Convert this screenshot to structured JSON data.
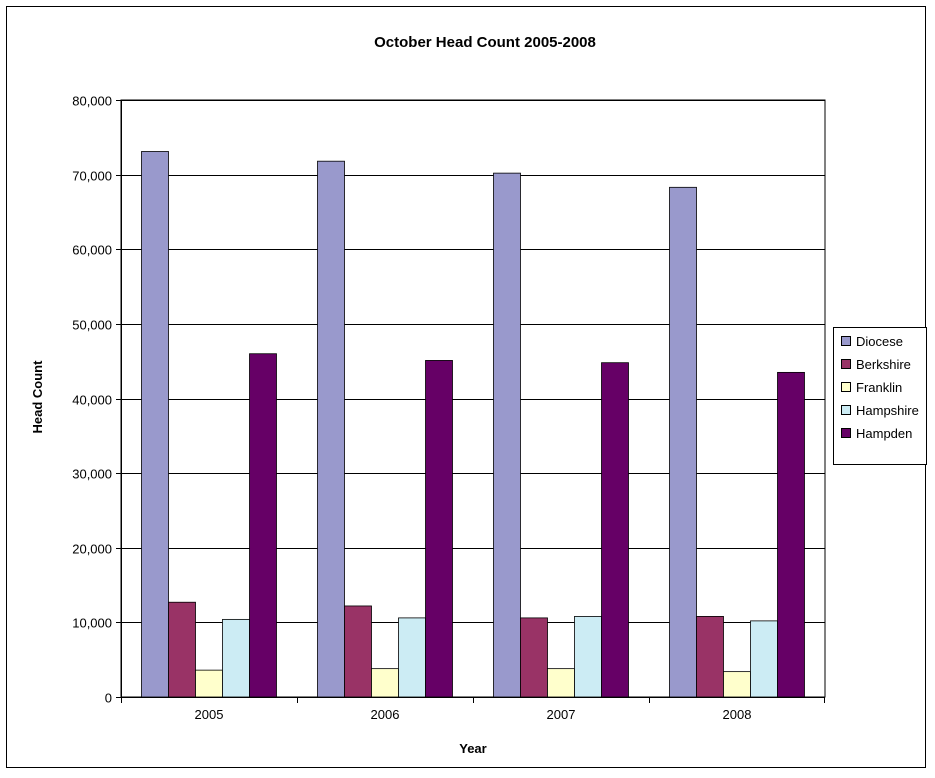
{
  "chart_data": {
    "type": "bar",
    "title": "October Head Count 2005-2008",
    "xlabel": "Year",
    "ylabel": "Head Count",
    "categories": [
      "2005",
      "2006",
      "2007",
      "2008"
    ],
    "ylim": [
      0,
      80000
    ],
    "yticks": [
      0,
      10000,
      20000,
      30000,
      40000,
      50000,
      60000,
      70000,
      80000
    ],
    "ytick_labels": [
      "0",
      "10,000",
      "20,000",
      "30,000",
      "40,000",
      "50,000",
      "60,000",
      "70,000",
      "80,000"
    ],
    "grid": "horizontal major gridlines",
    "legend_position": "right",
    "series": [
      {
        "name": "Diocese",
        "color": "#9999cc",
        "values": [
          73100,
          71800,
          70200,
          68300
        ]
      },
      {
        "name": "Berkshire",
        "color": "#993366",
        "values": [
          12700,
          12200,
          10600,
          10800
        ]
      },
      {
        "name": "Franklin",
        "color": "#ffffcc",
        "values": [
          3600,
          3800,
          3800,
          3400
        ]
      },
      {
        "name": "Hampshire",
        "color": "#ccecf4",
        "values": [
          10400,
          10600,
          10800,
          10200
        ]
      },
      {
        "name": "Hampden",
        "color": "#660066",
        "values": [
          46000,
          45100,
          44800,
          43500
        ]
      }
    ]
  }
}
